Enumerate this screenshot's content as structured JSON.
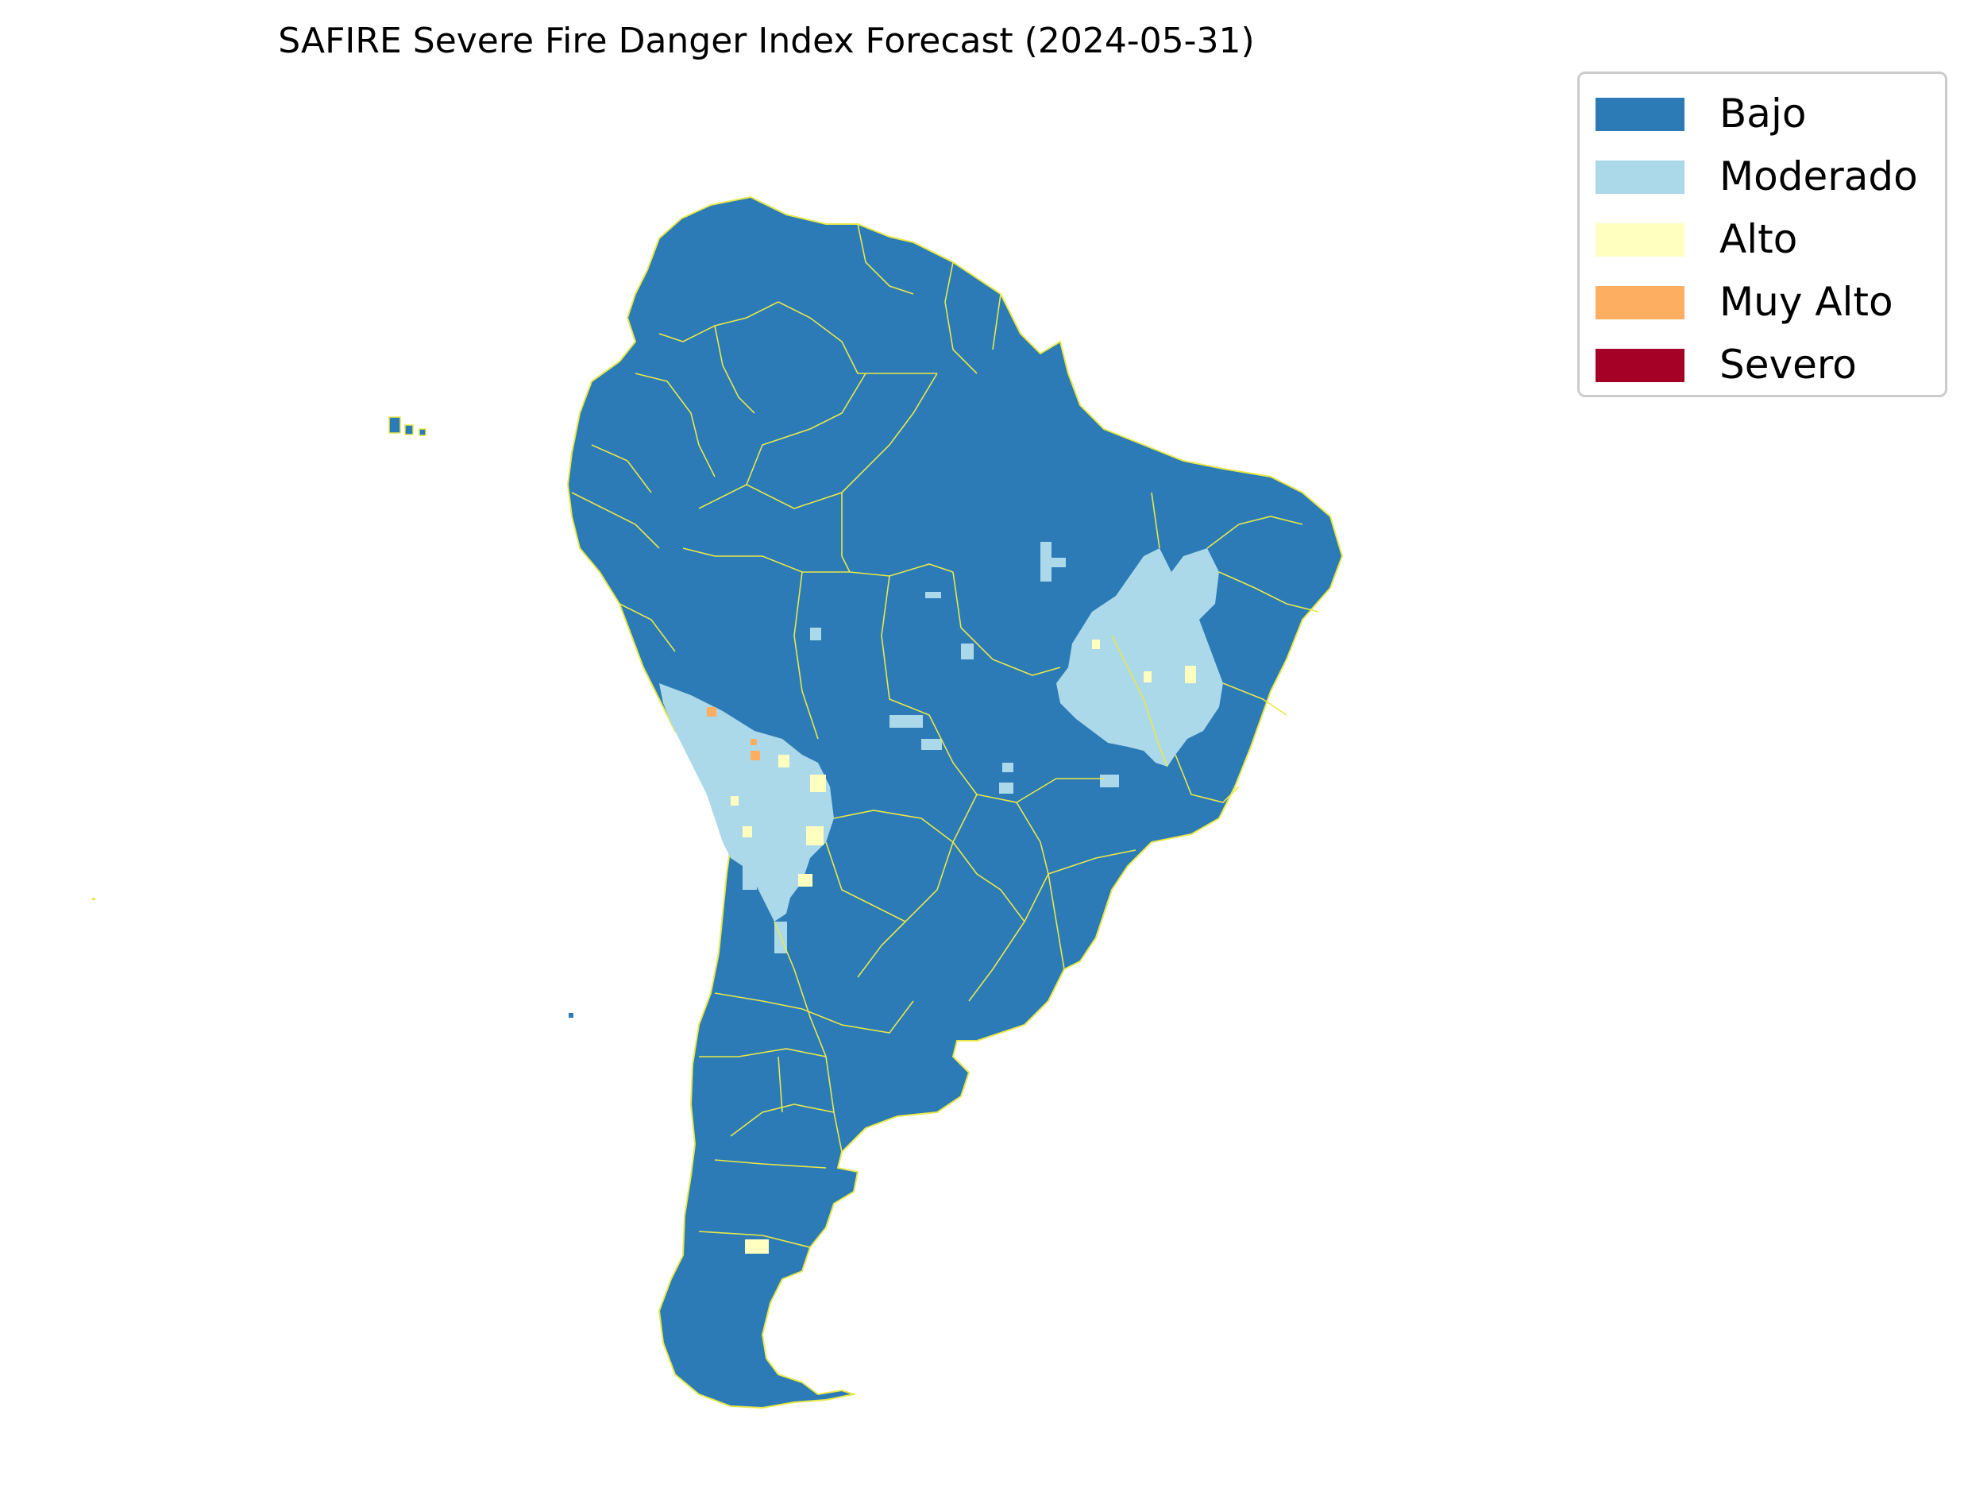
{
  "title": "SAFIRE Severe Fire Danger Index Forecast (2024-05-31)",
  "legend": [
    {
      "label": "Bajo",
      "color": "#2c7bb6"
    },
    {
      "label": "Moderado",
      "color": "#abd9e9"
    },
    {
      "label": "Alto",
      "color": "#ffffbf"
    },
    {
      "label": "Muy Alto",
      "color": "#fdae61"
    },
    {
      "label": "Severo",
      "color": "#a50026"
    }
  ],
  "colors": {
    "base": "#2c7bb6",
    "boundary": "#e8e84a"
  }
}
